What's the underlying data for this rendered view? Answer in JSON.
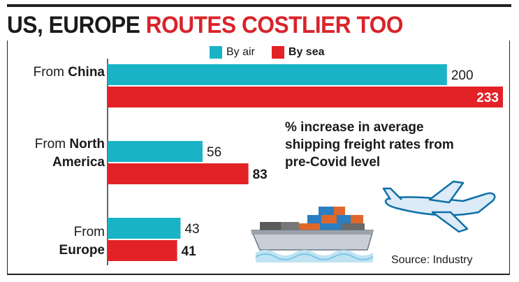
{
  "title": {
    "part1": "US, EUROPE ",
    "part2": "ROUTES COSTLIER TOO"
  },
  "annotation": "% increase in average shipping freight rates from pre-Covid level",
  "source": "Source: Industry",
  "colors": {
    "air": "#1ab3c6",
    "sea": "#e32228",
    "title_red": "#d9232a"
  },
  "icons": [
    "airplane-icon",
    "cargo-ship-icon"
  ],
  "categories_display": [
    {
      "prefix": "From ",
      "bold": "China",
      "prefix2": "",
      "bold2": ""
    },
    {
      "prefix": "From ",
      "bold": "North",
      "prefix2": "",
      "bold2": "America"
    },
    {
      "prefix": "From",
      "bold": "",
      "prefix2": "",
      "bold2": "Europe"
    }
  ],
  "chart_data": {
    "type": "bar",
    "orientation": "horizontal",
    "categories": [
      "From China",
      "From North America",
      "From Europe"
    ],
    "series": [
      {
        "name": "By air",
        "values": [
          200,
          56,
          43
        ]
      },
      {
        "name": "By sea",
        "values": [
          233,
          83,
          41
        ]
      }
    ],
    "xlim": [
      0,
      233
    ],
    "grid": false,
    "legend": "top-center"
  }
}
